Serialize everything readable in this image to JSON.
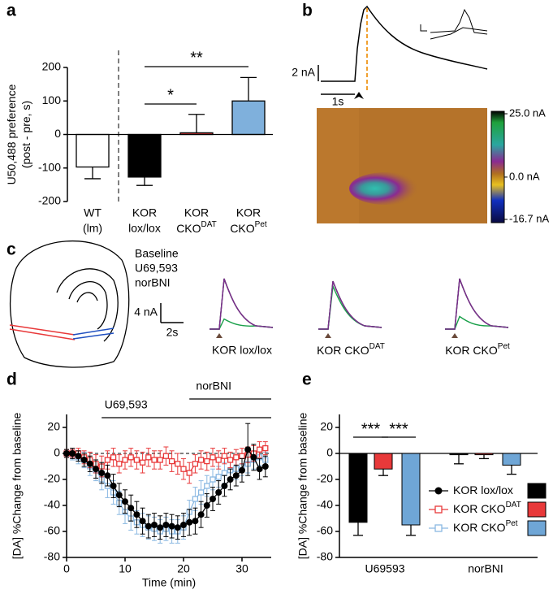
{
  "panel_labels": [
    "a",
    "b",
    "c",
    "d",
    "e"
  ],
  "chart_data": [
    {
      "type": "bar",
      "ylabel": [
        "U50,488 preference",
        "(post - pre, s)"
      ],
      "categories": [
        [
          "WT",
          "(lm)"
        ],
        [
          "KOR",
          "lox/lox"
        ],
        [
          "KOR",
          {
            "text": "CKO",
            "sup": "DAT"
          }
        ],
        [
          "KOR",
          {
            "text": "CKO",
            "sup": "Pet"
          }
        ]
      ],
      "values": [
        -97,
        -127,
        5,
        100
      ],
      "errors": [
        35,
        25,
        55,
        70
      ],
      "colors": [
        "#ffffff",
        "#000000",
        "#e8393a",
        "#7fb0dc"
      ],
      "ylim": [
        -200,
        200
      ],
      "yticks": [
        -200,
        -100,
        0,
        100,
        200
      ],
      "annotations": [
        "*",
        "**"
      ]
    },
    {
      "type": "heatmap",
      "scale_bars": {
        "current": "2 nA",
        "time": "1s"
      },
      "clim": [
        -16.7,
        25
      ],
      "colorbar_ticks": [
        {
          "value": 25,
          "label": "25.0 nA"
        },
        {
          "value": 0,
          "label": "0.0 nA"
        },
        {
          "value": -16.7,
          "label": "-16.7 nA"
        }
      ]
    },
    {
      "type": "trace",
      "series": [
        {
          "name": "Baseline",
          "color": "#000000"
        },
        {
          "name": "U69,593",
          "color": "#1aa04a"
        },
        {
          "name": "norBNI",
          "color": "#7a2e8e"
        }
      ],
      "scale_bars": {
        "current": "4 nA",
        "time": "2s"
      },
      "trace_labels": [
        "KOR lox/lox",
        {
          "text": "KOR CKO",
          "sup": "DAT"
        },
        {
          "text": "KOR CKO",
          "sup": "Pet"
        }
      ]
    },
    {
      "type": "line",
      "xlabel": "Time (min)",
      "ylabel": "[DA] %Change from baseline",
      "xlim": [
        0,
        35
      ],
      "xticks": [
        0,
        10,
        20,
        30
      ],
      "ylim": [
        -80,
        30
      ],
      "yticks": [
        -80,
        -60,
        -40,
        -20,
        0,
        20
      ],
      "periods": [
        {
          "label": "U69,593",
          "x": [
            6,
            35
          ]
        },
        {
          "label": "norBNI",
          "x": [
            21,
            35
          ]
        }
      ],
      "x": [
        0,
        1,
        2,
        3,
        4,
        5,
        6,
        7,
        8,
        9,
        10,
        11,
        12,
        13,
        14,
        15,
        16,
        17,
        18,
        19,
        20,
        21,
        22,
        23,
        24,
        25,
        26,
        27,
        28,
        29,
        30,
        31,
        32,
        33,
        34
      ],
      "series": [
        {
          "name": "KOR lox/lox",
          "color": "#000000",
          "marker": "circle",
          "values": [
            0,
            0,
            -2,
            -5,
            -8,
            -12,
            -15,
            -17,
            -25,
            -32,
            -37,
            -42,
            -47,
            -52,
            -56,
            -55,
            -57,
            -55,
            -56,
            -57,
            -55,
            -53,
            -52,
            -47,
            -40,
            -35,
            -30,
            -25,
            -20,
            -17,
            -13,
            3,
            -3,
            -12,
            -10
          ],
          "errors": [
            3,
            4,
            4,
            5,
            6,
            7,
            8,
            8,
            9,
            9,
            9,
            10,
            10,
            10,
            9,
            9,
            9,
            9,
            9,
            9,
            9,
            10,
            10,
            10,
            9,
            9,
            9,
            8,
            8,
            8,
            9,
            20,
            10,
            8,
            8
          ]
        },
        {
          "name": "KOR CKO",
          "name_sup": "DAT",
          "color": "#e8393a",
          "marker": "square",
          "values": [
            0,
            0,
            0,
            -3,
            -5,
            -8,
            -10,
            -5,
            -3,
            -8,
            -5,
            -3,
            -5,
            -7,
            -3,
            -5,
            -5,
            -2,
            -6,
            -8,
            -12,
            -15,
            -8,
            -5,
            -6,
            -3,
            -5,
            -2,
            -5,
            -3,
            -2,
            -1,
            0,
            3,
            4
          ],
          "errors": [
            3,
            3,
            4,
            5,
            6,
            7,
            8,
            7,
            7,
            7,
            7,
            7,
            7,
            8,
            7,
            7,
            7,
            7,
            8,
            8,
            8,
            8,
            7,
            7,
            7,
            7,
            7,
            6,
            6,
            6,
            6,
            6,
            6,
            6,
            5
          ]
        },
        {
          "name": "KOR CKO",
          "name_sup": "Pet",
          "color": "#8ab8e2",
          "marker": "square",
          "values": [
            0,
            -1,
            -3,
            -5,
            -10,
            -13,
            -20,
            -25,
            -30,
            -38,
            -45,
            -50,
            -53,
            -55,
            -57,
            -58,
            -60,
            -58,
            -60,
            -60,
            -57,
            -45,
            -35,
            -30,
            -25,
            -20,
            -18,
            -15,
            -13,
            -12,
            -10,
            -8,
            -5,
            -3,
            -5
          ],
          "errors": [
            3,
            4,
            5,
            6,
            7,
            8,
            8,
            9,
            9,
            9,
            9,
            9,
            9,
            9,
            9,
            9,
            9,
            9,
            9,
            9,
            9,
            9,
            9,
            9,
            8,
            8,
            8,
            8,
            8,
            8,
            7,
            7,
            7,
            6,
            6
          ]
        }
      ]
    },
    {
      "type": "grouped_bar",
      "ylabel": "[DA] %Change from baseline",
      "categories": [
        "U69593",
        "norBNI"
      ],
      "ylim": [
        -80,
        30
      ],
      "yticks": [
        -80,
        -60,
        -40,
        -20,
        0,
        20
      ],
      "annotations": [
        "***",
        "***"
      ],
      "series": [
        {
          "name": "KOR lox/lox",
          "color": "#000000",
          "values": [
            -53,
            -1
          ],
          "errors": [
            10,
            7
          ]
        },
        {
          "name": "KOR CKO",
          "name_sup": "DAT",
          "color": "#e8393a",
          "values": [
            -12,
            -1
          ],
          "errors": [
            5,
            3
          ]
        },
        {
          "name": "KOR CKO",
          "name_sup": "Pet",
          "color": "#6fa6d6",
          "values": [
            -55,
            -9
          ],
          "errors": [
            8,
            7
          ]
        }
      ]
    }
  ]
}
